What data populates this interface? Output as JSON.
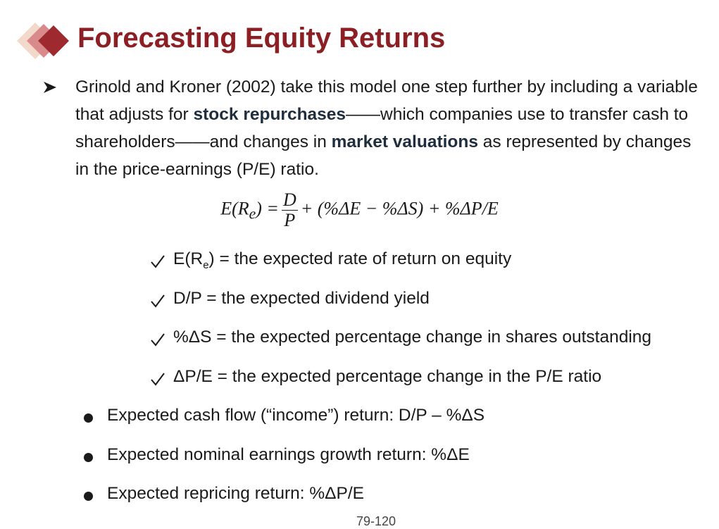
{
  "title": "Forecasting Equity Returns",
  "intro": {
    "parts": [
      "Grinold and Kroner (2002) take this model one step further by including a variable that adjusts for ",
      "stock repurchases",
      "——which companies use to transfer cash to shareholders——and changes in ",
      "market valuations",
      " as represented by changes in the price-earnings (P/E) ratio."
    ]
  },
  "equation": {
    "lhs": "E(R",
    "lhs_sub": "e",
    "lhs_close": ") =",
    "numerator": "D",
    "denominator": "P",
    "rest": "+ (%ΔE − %ΔS) + %ΔP/E"
  },
  "definitions": [
    {
      "main": "E(R",
      "sub": "e",
      "tail": ") = the expected rate of return on equity"
    },
    {
      "main": "D/P = the expected dividend yield"
    },
    {
      "main": "%ΔS = the expected percentage change in shares outstanding"
    },
    {
      "main": "ΔP/E = the expected percentage change in the P/E ratio"
    }
  ],
  "bullets": [
    "Expected cash flow (“income”) return: D/P – %ΔS",
    "Expected nominal earnings growth return: %ΔE",
    "Expected repricing return: %ΔP/E"
  ],
  "page_number": "79-120"
}
